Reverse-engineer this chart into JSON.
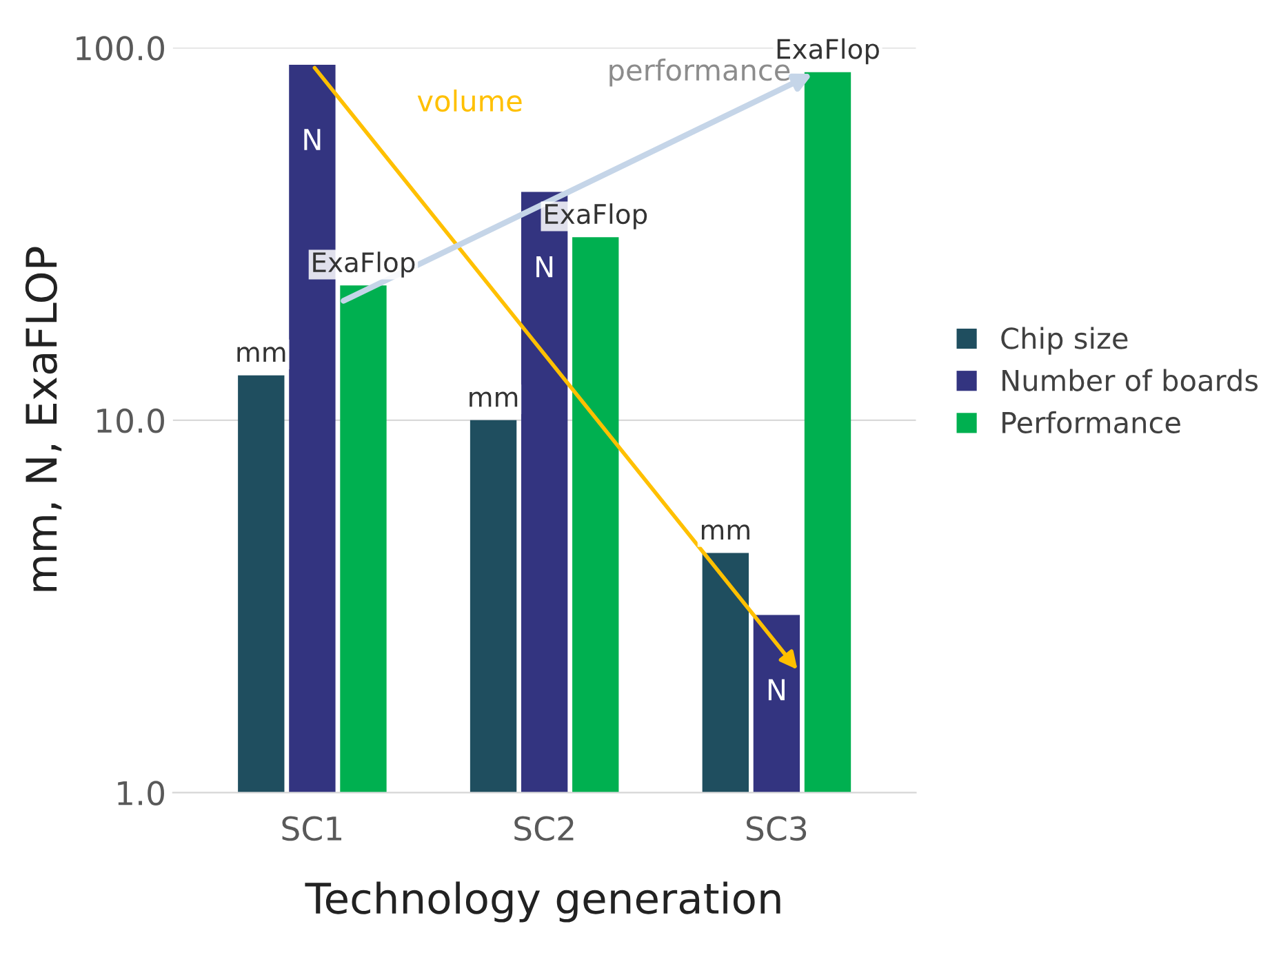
{
  "chart_data": {
    "type": "bar",
    "xlabel": "Technology generation",
    "ylabel": "mm, N, ExaFLOP",
    "categories": [
      "SC1",
      "SC2",
      "SC3"
    ],
    "series": [
      {
        "name": "Chip size",
        "color": "#1f4e5f",
        "values": [
          13.2,
          10,
          4.4
        ],
        "value_labels": [
          "mm",
          "mm",
          "mm"
        ]
      },
      {
        "name": "Number of boards",
        "color": "#333480",
        "values": [
          90,
          41,
          3.0
        ],
        "value_labels": [
          "N",
          "N",
          "N"
        ]
      },
      {
        "name": "Performance",
        "color": "#00b050",
        "values": [
          23,
          31,
          86
        ],
        "value_labels": [
          "ExaFlop",
          "ExaFlop",
          "ExaFlop"
        ]
      }
    ],
    "log": true,
    "ylim": [
      1,
      100
    ],
    "yticks": [
      {
        "value": 1,
        "label": "1.0"
      },
      {
        "value": 10,
        "label": "10.0"
      },
      {
        "value": 100,
        "label": "100.0"
      }
    ],
    "grid": "y",
    "legend": "right",
    "annotations": [
      "volume",
      "performance"
    ]
  }
}
